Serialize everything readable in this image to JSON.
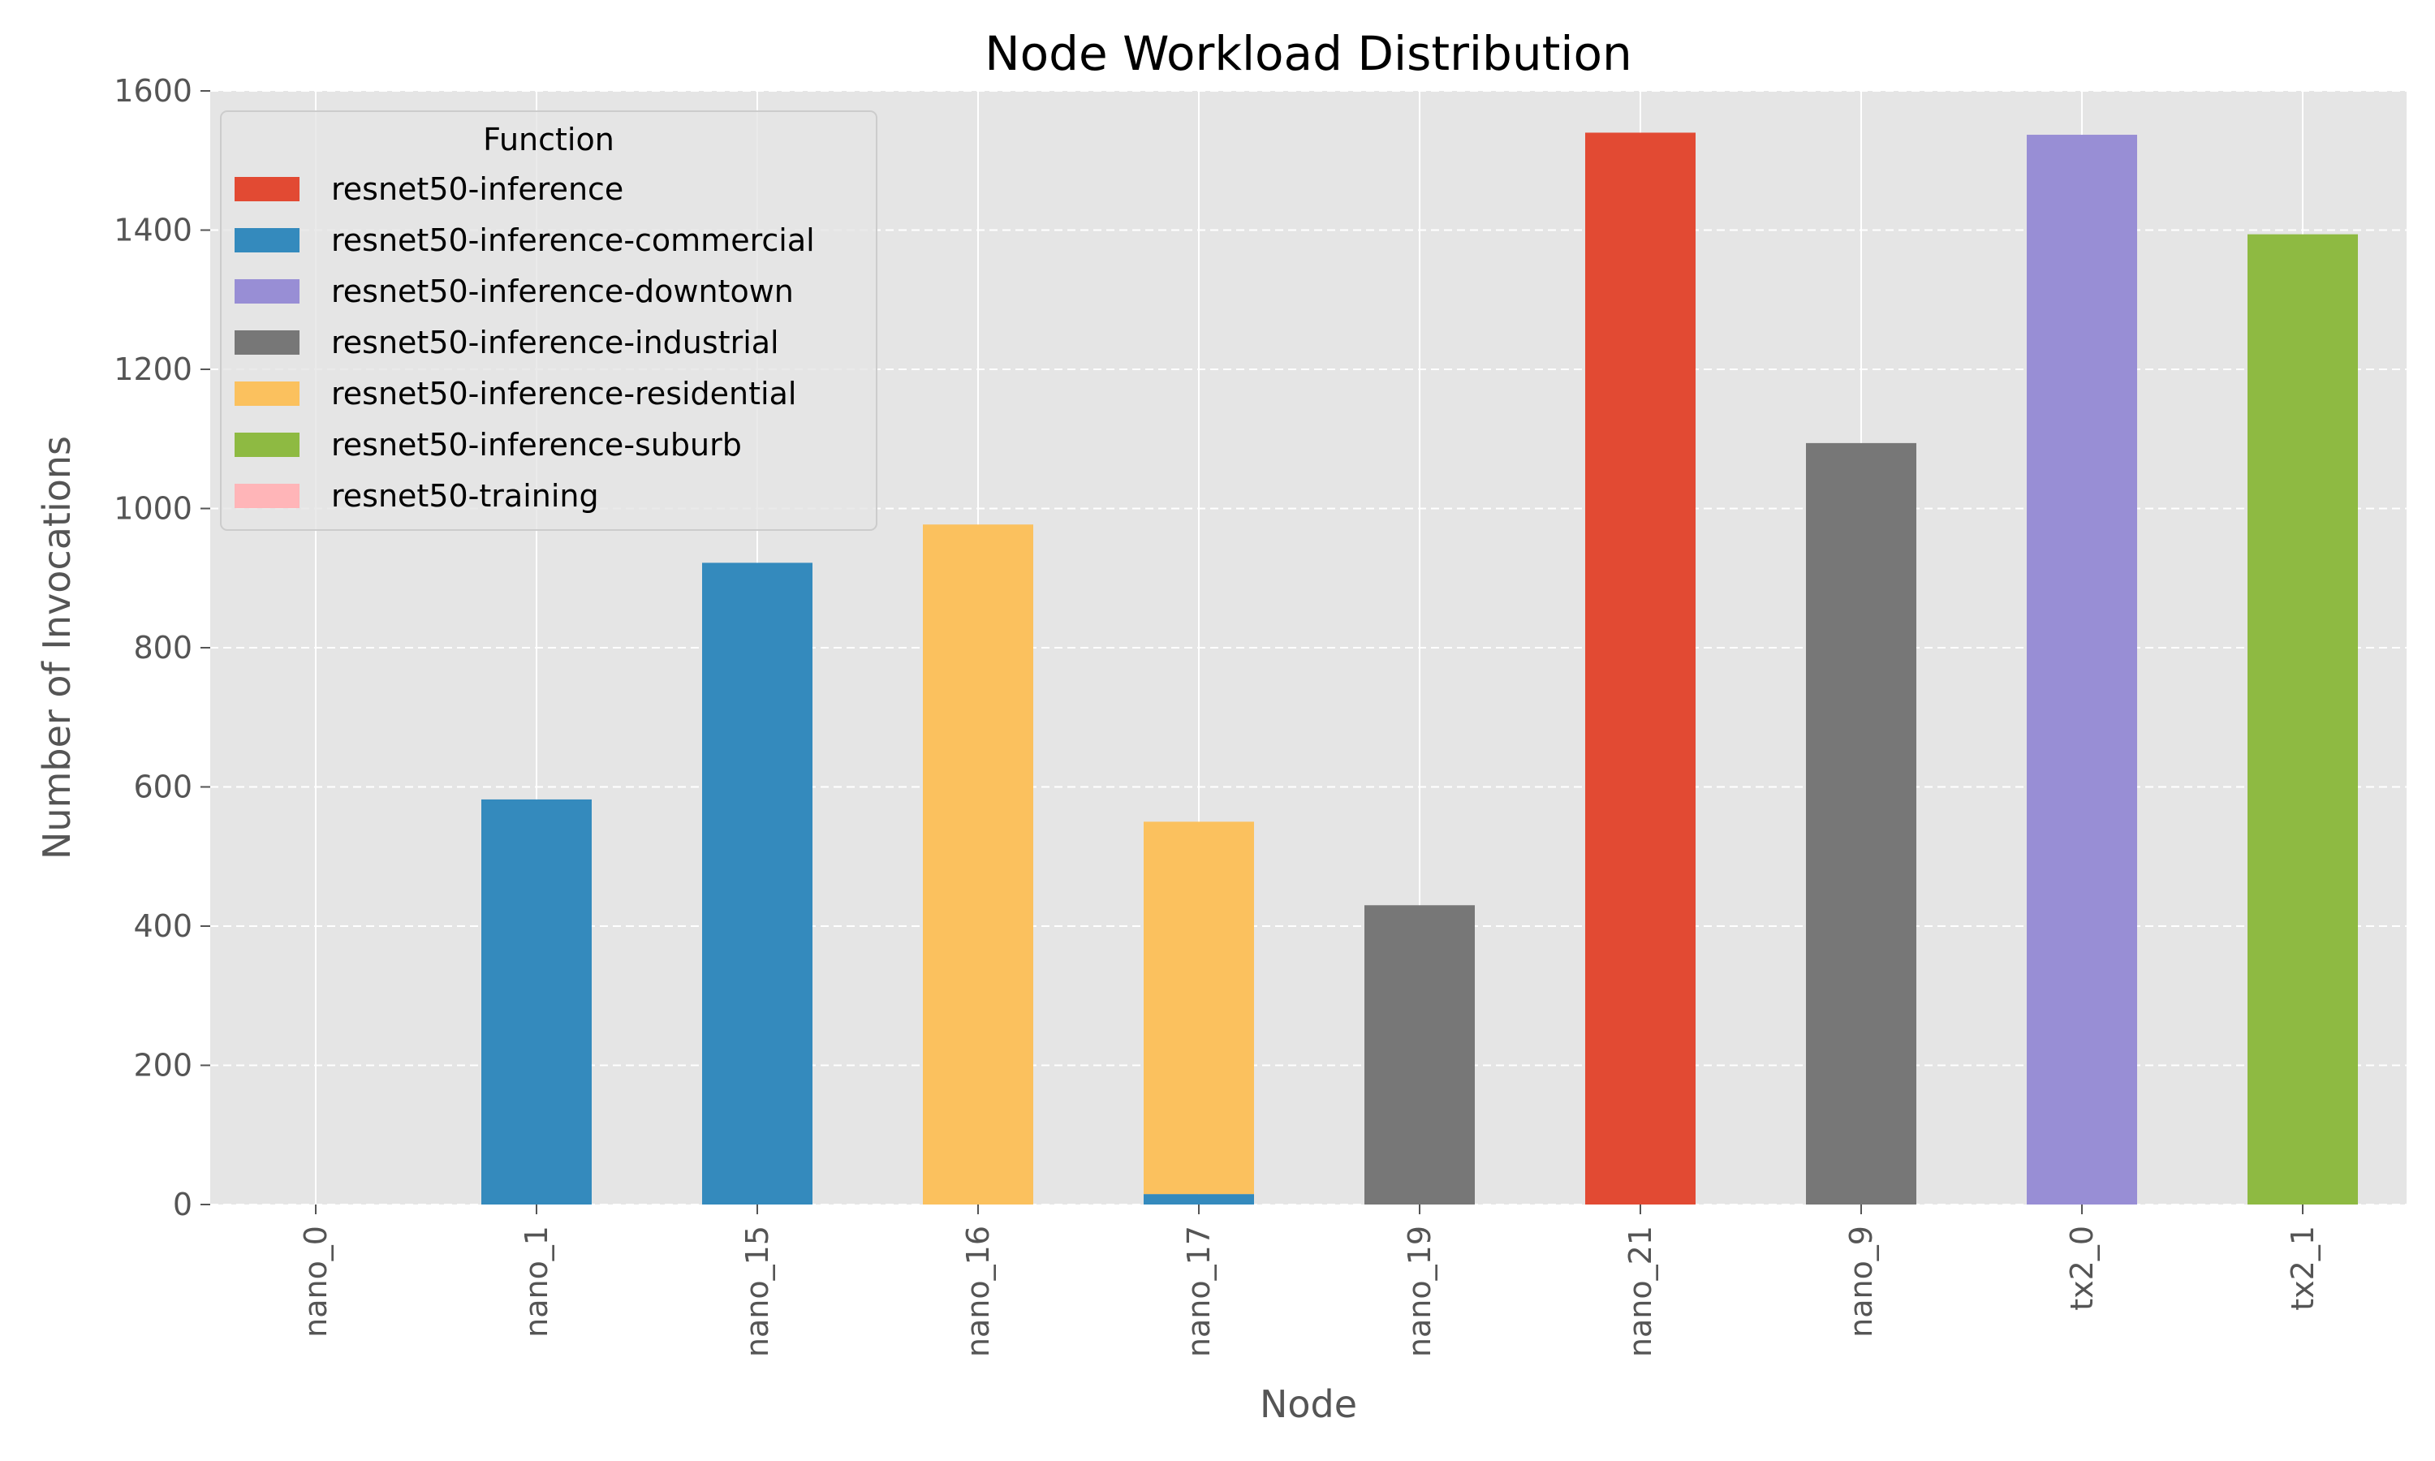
{
  "chart_data": {
    "type": "bar",
    "stacked": true,
    "title": "Node Workload Distribution",
    "xlabel": "Node",
    "ylabel": "Number of Invocations",
    "ylim": [
      0,
      1600
    ],
    "yticks": [
      0,
      200,
      400,
      600,
      800,
      1000,
      1200,
      1400,
      1600
    ],
    "grid": true,
    "legend": {
      "title": "Function",
      "placement": "top-left"
    },
    "categories": [
      "nano_0",
      "nano_1",
      "nano_15",
      "nano_16",
      "nano_17",
      "nano_19",
      "nano_21",
      "nano_9",
      "tx2_0",
      "tx2_1"
    ],
    "series": [
      {
        "name": "resnet50-inference",
        "color": "#E24A33",
        "values": [
          0,
          0,
          0,
          0,
          0,
          0,
          1540,
          0,
          0,
          0
        ]
      },
      {
        "name": "resnet50-inference-commercial",
        "color": "#348ABD",
        "values": [
          0,
          582,
          922,
          0,
          15,
          0,
          0,
          0,
          0,
          0
        ]
      },
      {
        "name": "resnet50-inference-downtown",
        "color": "#988ED5",
        "values": [
          0,
          0,
          0,
          0,
          0,
          0,
          0,
          0,
          1537,
          0
        ]
      },
      {
        "name": "resnet50-inference-industrial",
        "color": "#777777",
        "values": [
          0,
          0,
          0,
          0,
          0,
          430,
          0,
          1094,
          0,
          0
        ]
      },
      {
        "name": "resnet50-inference-residential",
        "color": "#FBC15E",
        "values": [
          0,
          0,
          0,
          977,
          535,
          0,
          0,
          0,
          0,
          0
        ]
      },
      {
        "name": "resnet50-inference-suburb",
        "color": "#8EBA42",
        "values": [
          0,
          0,
          0,
          0,
          0,
          0,
          0,
          0,
          0,
          1394
        ]
      },
      {
        "name": "resnet50-training",
        "color": "#FFB5B8",
        "values": [
          0,
          0,
          0,
          0,
          0,
          0,
          0,
          0,
          0,
          0
        ]
      }
    ]
  }
}
